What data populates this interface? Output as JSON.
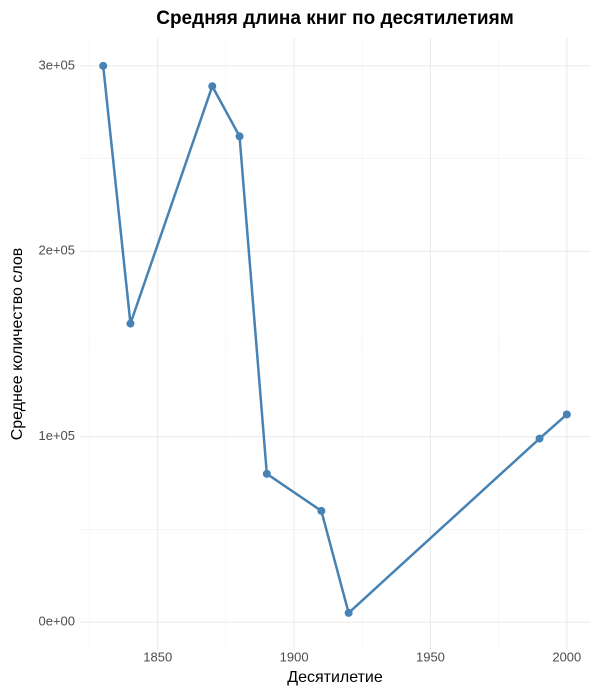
{
  "chart_data": {
    "type": "line",
    "title": "Средняя длина книг по десятилетиям",
    "x_label": "Десятилетие",
    "y_label": "Среднее количество слов",
    "x": [
      1830,
      1840,
      1870,
      1880,
      1890,
      1910,
      1920,
      1990,
      2000
    ],
    "series": [
      {
        "name": "Среднее количество слов",
        "color": "#4682b4",
        "values": [
          300000,
          161000,
          289000,
          262000,
          80000,
          60000,
          5000,
          99000,
          112000
        ]
      }
    ],
    "xlim": [
      1821.5,
      2008.5
    ],
    "ylim": [
      -15000,
      315000
    ],
    "xticks": [
      1850,
      1900,
      1950,
      2000
    ],
    "yticks": [
      {
        "value": 0,
        "label": "0e+00"
      },
      {
        "value": 100000,
        "label": "1e+05"
      },
      {
        "value": 200000,
        "label": "2e+05"
      },
      {
        "value": 300000,
        "label": "3e+05"
      }
    ],
    "x_minor_ticks": [
      1825,
      1875,
      1925,
      1975
    ],
    "y_minor_ticks": [
      50000,
      150000,
      250000
    ],
    "grid": true
  }
}
